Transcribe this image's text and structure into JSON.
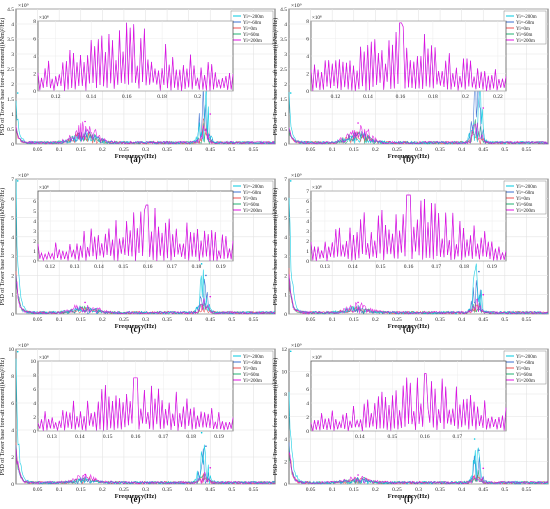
{
  "figure": {
    "ylabel": "PSD of Tower base fore-aft moment((kNm)²/Hz)",
    "xlabel": "Frequency(Hz)",
    "scale_label": "×10⁹",
    "inset_scale_label": "×10⁸",
    "legend": [
      {
        "name": "Yi=-200m",
        "color": "#00c8e0"
      },
      {
        "name": "Yi=-60m",
        "color": "#3a6fd0"
      },
      {
        "name": "Yi=0m",
        "color": "#f05050"
      },
      {
        "name": "Yi=60m",
        "color": "#20b070"
      },
      {
        "name": "Yi=200m",
        "color": "#e010e0"
      }
    ]
  },
  "chart_data": [
    {
      "type": "line",
      "panel_label": "(a)",
      "xlim": [
        0,
        0.6
      ],
      "ylim": [
        0,
        4.5
      ],
      "yticks": [
        "0",
        "0.5",
        "1",
        "1.5",
        "2",
        "2.5",
        "3",
        "3.5",
        "4",
        "4.5"
      ],
      "xticks": [
        "0.05",
        "0.1",
        "0.15",
        "0.2",
        "0.25",
        "0.3",
        "0.35",
        "0.4",
        "0.45",
        "0.5",
        "0.55"
      ],
      "peaks": [
        {
          "x": 0.43,
          "y": 2.6,
          "series": "Yi=-200m"
        },
        {
          "x": 0.44,
          "y": 2.2,
          "series": "Yi=-60m"
        },
        {
          "x": 0.45,
          "y": 1.0,
          "series": "Yi=200m"
        },
        {
          "x": 0.16,
          "y": 0.75,
          "series": "Yi=200m"
        },
        {
          "x": 0.004,
          "y": 1.7,
          "series": "Yi=-200m"
        }
      ],
      "inset": {
        "xlim": [
          0.11,
          0.22
        ],
        "ylim": [
          0,
          8
        ],
        "yticks": [
          "0",
          "2",
          "4",
          "6",
          "8"
        ],
        "xticks": [
          "0.12",
          "0.14",
          "0.16",
          "0.18",
          "0.2"
        ],
        "peak": {
          "x": 0.16,
          "y": 7.8
        }
      }
    },
    {
      "type": "line",
      "panel_label": "(b)",
      "xlim": [
        0,
        0.6
      ],
      "ylim": [
        0,
        4.5
      ],
      "yticks": [
        "0",
        "0.5",
        "1",
        "1.5",
        "2",
        "2.5",
        "3",
        "3.5",
        "4",
        "4.5"
      ],
      "xticks": [
        "0.05",
        "0.1",
        "0.15",
        "0.2",
        "0.25",
        "0.3",
        "0.35",
        "0.4",
        "0.45",
        "0.5",
        "0.55"
      ],
      "peaks": [
        {
          "x": 0.43,
          "y": 3.8,
          "series": "Yi=-200m"
        },
        {
          "x": 0.44,
          "y": 3.0,
          "series": "Yi=-60m"
        },
        {
          "x": 0.45,
          "y": 1.2,
          "series": "Yi=200m"
        },
        {
          "x": 0.16,
          "y": 0.7,
          "series": "Yi=200m"
        },
        {
          "x": 0.004,
          "y": 1.7,
          "series": "Yi=-200m"
        }
      ],
      "inset": {
        "xlim": [
          0.105,
          0.225
        ],
        "ylim": [
          0,
          8
        ],
        "yticks": [
          "0",
          "2",
          "4",
          "6",
          "8"
        ],
        "xticks": [
          "0.12",
          "0.14",
          "0.16",
          "0.18",
          "0.2",
          "0.22"
        ],
        "peak": {
          "x": 0.16,
          "y": 7.8
        }
      }
    },
    {
      "type": "line",
      "panel_label": "(c)",
      "xlim": [
        0,
        0.6
      ],
      "ylim": [
        0,
        7
      ],
      "yticks": [
        "0",
        "1",
        "2",
        "3",
        "4",
        "5",
        "6",
        "7"
      ],
      "xticks": [
        "0.05",
        "0.1",
        "0.15",
        "0.2",
        "0.25",
        "0.3",
        "0.35",
        "0.4",
        "0.45",
        "0.5",
        "0.55"
      ],
      "peaks": [
        {
          "x": 0.43,
          "y": 2.6,
          "series": "Yi=-200m"
        },
        {
          "x": 0.44,
          "y": 2.0,
          "series": "Yi=-60m"
        },
        {
          "x": 0.45,
          "y": 0.9,
          "series": "Yi=200m"
        },
        {
          "x": 0.16,
          "y": 0.6,
          "series": "Yi=200m"
        },
        {
          "x": 0.004,
          "y": 6.9,
          "series": "Yi=-200m"
        }
      ],
      "inset": {
        "xlim": [
          0.115,
          0.195
        ],
        "ylim": [
          0,
          7
        ],
        "yticks": [
          "0",
          "1",
          "2",
          "3",
          "4",
          "5",
          "6"
        ],
        "xticks": [
          "0.12",
          "0.13",
          "0.14",
          "0.15",
          "0.16",
          "0.17",
          "0.18",
          "0.19"
        ],
        "peak": {
          "x": 0.16,
          "y": 5.6
        }
      }
    },
    {
      "type": "line",
      "panel_label": "(d)",
      "xlim": [
        0,
        0.6
      ],
      "ylim": [
        0,
        7
      ],
      "yticks": [
        "0",
        "1",
        "2",
        "3",
        "4",
        "5",
        "6",
        "7"
      ],
      "xticks": [
        "0.05",
        "0.1",
        "0.15",
        "0.2",
        "0.25",
        "0.3",
        "0.35",
        "0.4",
        "0.45",
        "0.5",
        "0.55"
      ],
      "peaks": [
        {
          "x": 0.43,
          "y": 2.8,
          "series": "Yi=-200m"
        },
        {
          "x": 0.44,
          "y": 2.2,
          "series": "Yi=-60m"
        },
        {
          "x": 0.45,
          "y": 1.0,
          "series": "Yi=200m"
        },
        {
          "x": 0.16,
          "y": 0.6,
          "series": "Yi=200m"
        },
        {
          "x": 0.004,
          "y": 6.9,
          "series": "Yi=-200m"
        }
      ],
      "inset": {
        "xlim": [
          0.125,
          0.195
        ],
        "ylim": [
          0,
          7
        ],
        "yticks": [
          "0",
          "1",
          "2",
          "3",
          "4",
          "5",
          "6",
          "7"
        ],
        "xticks": [
          "0.13",
          "0.14",
          "0.15",
          "0.16",
          "0.17",
          "0.18",
          "0.19"
        ],
        "peak": {
          "x": 0.16,
          "y": 6.6
        }
      }
    },
    {
      "type": "line",
      "panel_label": "(e)",
      "xlim": [
        0,
        0.6
      ],
      "ylim": [
        0,
        10
      ],
      "yticks": [
        "0",
        "2",
        "4",
        "6",
        "8",
        "10"
      ],
      "xticks": [
        "0.05",
        "0.1",
        "0.15",
        "0.2",
        "0.25",
        "0.3",
        "0.35",
        "0.4",
        "0.45",
        "0.5",
        "0.55"
      ],
      "peaks": [
        {
          "x": 0.43,
          "y": 3.8,
          "series": "Yi=-200m"
        },
        {
          "x": 0.44,
          "y": 2.8,
          "series": "Yi=-60m"
        },
        {
          "x": 0.45,
          "y": 1.2,
          "series": "Yi=200m"
        },
        {
          "x": 0.16,
          "y": 0.7,
          "series": "Yi=200m"
        },
        {
          "x": 0.004,
          "y": 9.8,
          "series": "Yi=-200m"
        }
      ],
      "inset": {
        "xlim": [
          0.125,
          0.195
        ],
        "ylim": [
          0,
          10
        ],
        "yticks": [
          "0",
          "2",
          "4",
          "6",
          "8",
          "10"
        ],
        "xticks": [
          "0.13",
          "0.14",
          "0.15",
          "0.16",
          "0.17",
          "0.18",
          "0.19"
        ],
        "peak": {
          "x": 0.16,
          "y": 7.6
        }
      }
    },
    {
      "type": "line",
      "panel_label": "(f)",
      "xlim": [
        0,
        0.6
      ],
      "ylim": [
        0,
        12
      ],
      "yticks": [
        "0",
        "2",
        "4",
        "6",
        "8",
        "10",
        "12"
      ],
      "xticks": [
        "0.05",
        "0.1",
        "0.15",
        "0.2",
        "0.25",
        "0.3",
        "0.35",
        "0.4",
        "0.45",
        "0.5",
        "0.55"
      ],
      "peaks": [
        {
          "x": 0.43,
          "y": 4.0,
          "series": "Yi=-200m"
        },
        {
          "x": 0.44,
          "y": 3.0,
          "series": "Yi=-60m"
        },
        {
          "x": 0.45,
          "y": 1.4,
          "series": "Yi=200m"
        },
        {
          "x": 0.16,
          "y": 0.8,
          "series": "Yi=200m"
        },
        {
          "x": 0.004,
          "y": 11.8,
          "series": "Yi=-200m"
        }
      ],
      "inset": {
        "xlim": [
          0.125,
          0.185
        ],
        "ylim": [
          0,
          10
        ],
        "yticks": [
          "0",
          "2",
          "4",
          "6",
          "8"
        ],
        "xticks": [
          "0.14",
          "0.15",
          "0.16",
          "0.17"
        ],
        "peak": {
          "x": 0.16,
          "y": 8.2
        }
      }
    }
  ]
}
